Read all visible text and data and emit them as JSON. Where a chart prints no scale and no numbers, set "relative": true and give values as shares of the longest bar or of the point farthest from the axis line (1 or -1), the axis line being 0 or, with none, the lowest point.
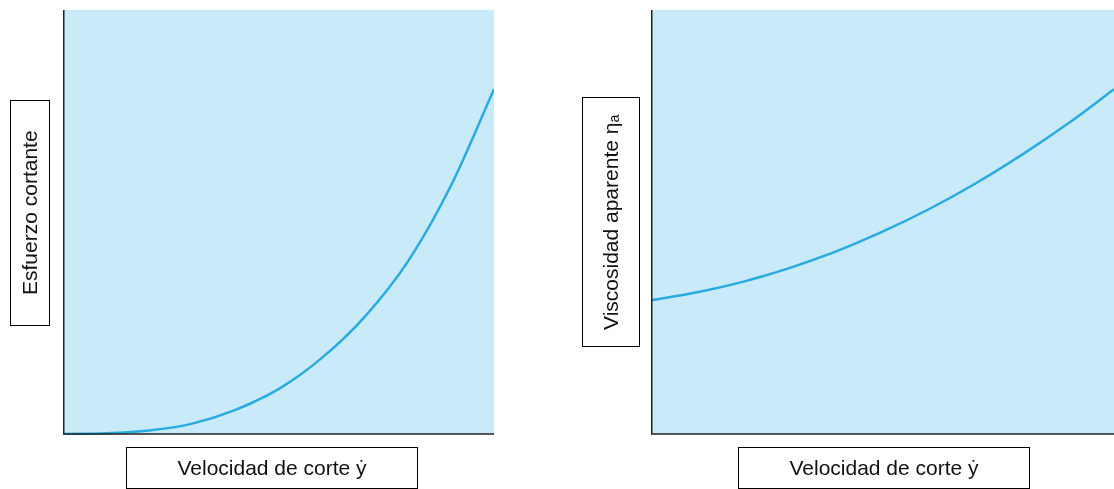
{
  "chart_data": [
    {
      "type": "line",
      "relative": true,
      "xlabel": "Velocidad de corte ẏ",
      "ylabel": "Esfuerzo cortante",
      "categories": [
        null,
        null,
        null,
        null,
        null,
        null,
        null,
        null,
        null,
        null,
        null
      ],
      "series": [
        {
          "color": "#29abe2",
          "values": [
            0,
            0.002,
            0.01,
            0.03,
            0.07,
            0.13,
            0.22,
            0.34,
            0.5,
            0.72,
            1
          ]
        }
      ]
    },
    {
      "type": "line",
      "relative": true,
      "xlabel": "Velocidad de corte ẏ",
      "ylabel": "Viscosidad aparente ηₐ",
      "categories": [
        null,
        null,
        null,
        null,
        null,
        null,
        null,
        null,
        null,
        null,
        null
      ],
      "series": [
        {
          "color": "#29abe2",
          "values": [
            0.388,
            0.411,
            0.442,
            0.482,
            0.53,
            0.587,
            0.652,
            0.726,
            0.809,
            0.9,
            1
          ]
        }
      ]
    }
  ]
}
